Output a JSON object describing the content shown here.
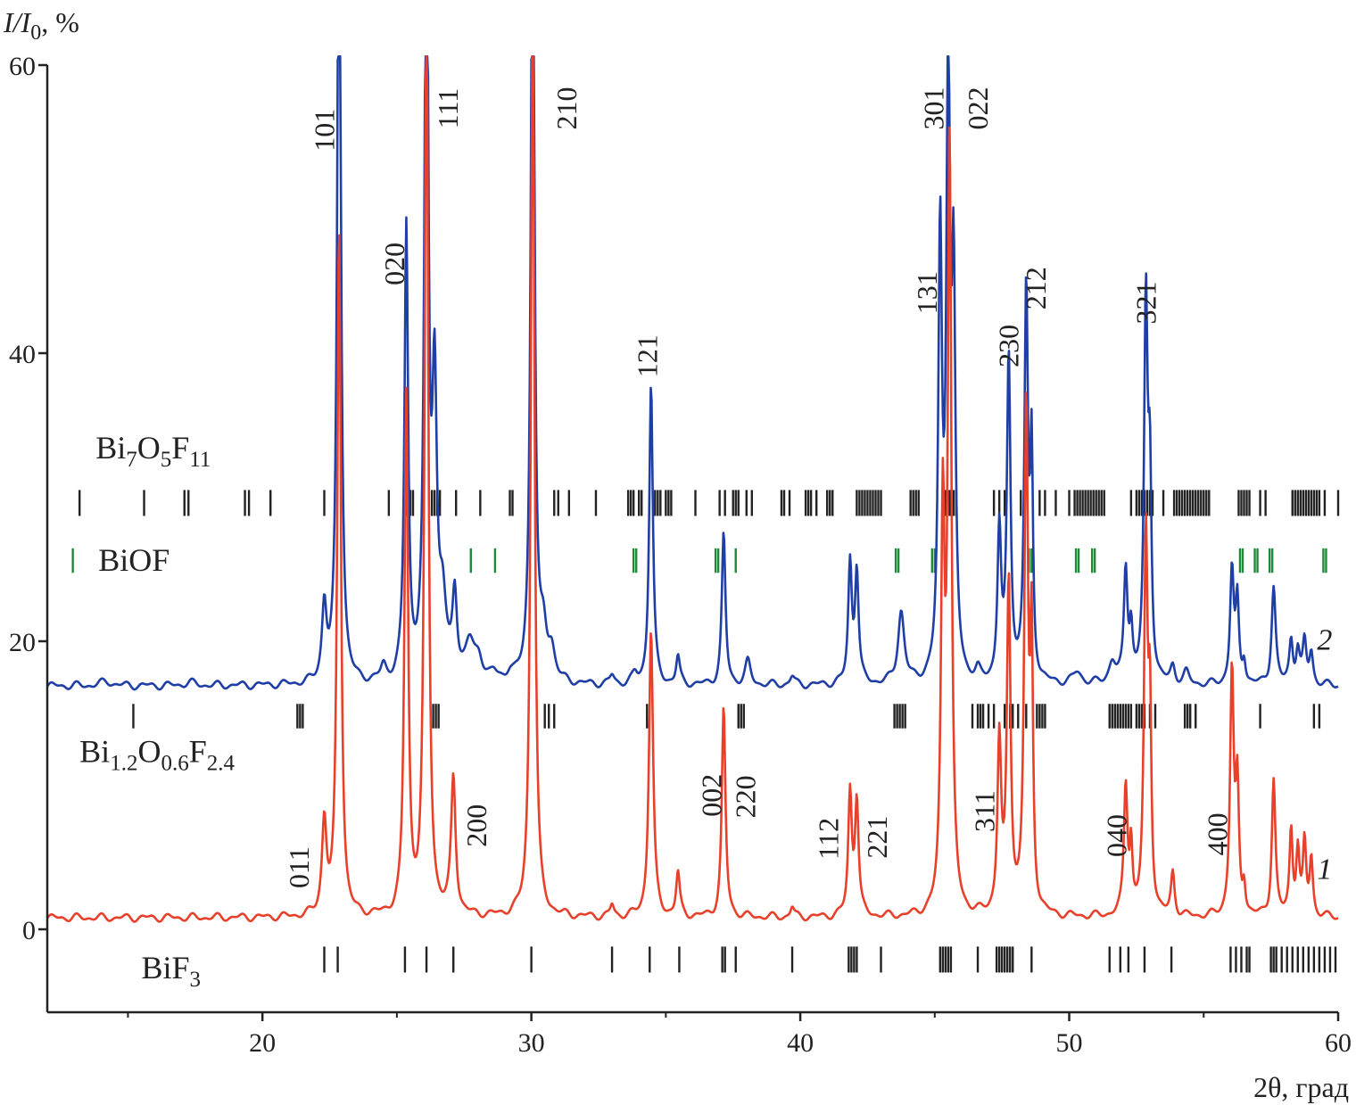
{
  "chart_data": {
    "type": "line",
    "title": "",
    "xlabel": "2θ, град",
    "ylabel": "I/I0, %",
    "ylabel_parts": [
      "I/I",
      "0",
      ", %"
    ],
    "xlim": [
      12,
      60
    ],
    "ylim": [
      -6,
      60
    ],
    "x_ticks": [
      20,
      30,
      40,
      50,
      60
    ],
    "y_ticks": [
      0,
      20,
      40,
      60
    ],
    "colors": {
      "curve1": "#e8402a",
      "curve2": "#1f3fa6",
      "bars": "#222222",
      "biof": "#1f8a3a",
      "axis": "#222222"
    },
    "series": [
      {
        "name": "1",
        "label": "1",
        "color": "#e8402a",
        "baseline": 0.8,
        "label_pos": [
          59.5,
          3.5
        ],
        "peaks": [
          [
            22.3,
            6.5,
            0.1
          ],
          [
            22.85,
            48,
            0.08
          ],
          [
            25.35,
            36,
            0.08
          ],
          [
            26.1,
            65,
            0.08
          ],
          [
            27.1,
            9.5,
            0.1
          ],
          [
            30.05,
            65,
            0.08
          ],
          [
            33.0,
            0.8,
            0.08
          ],
          [
            34.45,
            20,
            0.09
          ],
          [
            35.45,
            3.0,
            0.08
          ],
          [
            37.15,
            14.5,
            0.08
          ],
          [
            39.7,
            0.7,
            0.08
          ],
          [
            41.85,
            8.5,
            0.08
          ],
          [
            42.1,
            8.0,
            0.08
          ],
          [
            45.3,
            27,
            0.08
          ],
          [
            45.55,
            53,
            0.08
          ],
          [
            47.4,
            12,
            0.08
          ],
          [
            47.75,
            23,
            0.08
          ],
          [
            48.4,
            35,
            0.08
          ],
          [
            48.6,
            18,
            0.06
          ],
          [
            52.1,
            9.0,
            0.08
          ],
          [
            52.3,
            4.5,
            0.06
          ],
          [
            52.85,
            26,
            0.08
          ],
          [
            53.0,
            13,
            0.06
          ],
          [
            53.85,
            3.0,
            0.08
          ],
          [
            56.05,
            17,
            0.08
          ],
          [
            56.25,
            8.5,
            0.07
          ],
          [
            56.5,
            2.0,
            0.06
          ],
          [
            57.6,
            9.5,
            0.08
          ],
          [
            58.25,
            6.0,
            0.07
          ],
          [
            58.5,
            4.5,
            0.07
          ],
          [
            58.75,
            5.0,
            0.07
          ],
          [
            59.0,
            4.0,
            0.07
          ]
        ]
      },
      {
        "name": "2",
        "label": "2",
        "color": "#1f3fa6",
        "baseline": 16.9,
        "label_pos": [
          59.5,
          19.4
        ],
        "peaks": [
          [
            14.2,
            0.3,
            0.25
          ],
          [
            17.3,
            0.2,
            0.25
          ],
          [
            22.3,
            5.2,
            0.1
          ],
          [
            22.85,
            60,
            0.08
          ],
          [
            24.5,
            1.0,
            0.12
          ],
          [
            25.35,
            31.5,
            0.08
          ],
          [
            26.1,
            60,
            0.08
          ],
          [
            26.4,
            19.5,
            0.1
          ],
          [
            26.7,
            5.0,
            0.15
          ],
          [
            27.15,
            5.8,
            0.1
          ],
          [
            27.7,
            2.5,
            0.2
          ],
          [
            28.05,
            1.5,
            0.18
          ],
          [
            28.6,
            0.5,
            0.15
          ],
          [
            29.2,
            0.6,
            0.15
          ],
          [
            30.05,
            60,
            0.08
          ],
          [
            30.45,
            3.0,
            0.15
          ],
          [
            30.75,
            2.0,
            0.15
          ],
          [
            33.0,
            0.6,
            0.1
          ],
          [
            33.85,
            0.6,
            0.12
          ],
          [
            34.45,
            21,
            0.08
          ],
          [
            35.45,
            1.9,
            0.08
          ],
          [
            37.15,
            10.5,
            0.08
          ],
          [
            38.05,
            1.6,
            0.12
          ],
          [
            39.7,
            0.6,
            0.1
          ],
          [
            41.85,
            8.3,
            0.08
          ],
          [
            42.1,
            7.8,
            0.08
          ],
          [
            43.75,
            5.0,
            0.14
          ],
          [
            45.2,
            30.5,
            0.08
          ],
          [
            45.5,
            43,
            0.08
          ],
          [
            45.7,
            26,
            0.08
          ],
          [
            46.6,
            0.6,
            0.1
          ],
          [
            47.4,
            10.5,
            0.08
          ],
          [
            47.75,
            22.5,
            0.08
          ],
          [
            48.4,
            27,
            0.08
          ],
          [
            48.6,
            15,
            0.06
          ],
          [
            50.3,
            0.8,
            0.2
          ],
          [
            51.6,
            1.5,
            0.15
          ],
          [
            52.1,
            7.8,
            0.08
          ],
          [
            52.3,
            3.5,
            0.07
          ],
          [
            52.85,
            26,
            0.08
          ],
          [
            53.0,
            13,
            0.07
          ],
          [
            53.85,
            1.2,
            0.1
          ],
          [
            54.35,
            0.8,
            0.12
          ],
          [
            56.05,
            8.0,
            0.08
          ],
          [
            56.25,
            5.5,
            0.07
          ],
          [
            56.5,
            1.6,
            0.07
          ],
          [
            57.6,
            6.8,
            0.09
          ],
          [
            58.25,
            3.1,
            0.08
          ],
          [
            58.5,
            2.3,
            0.08
          ],
          [
            58.75,
            2.9,
            0.08
          ],
          [
            59.0,
            2.2,
            0.08
          ]
        ]
      }
    ],
    "reference_patterns": [
      {
        "phase": "Bi7O5F11",
        "parts": [
          [
            "Bi",
            false
          ],
          [
            "7",
            true
          ],
          [
            "O",
            false
          ],
          [
            "5",
            true
          ],
          [
            "F",
            false
          ],
          [
            "11",
            true
          ]
        ],
        "y_center": 29.6,
        "tick_half_height": 0.9,
        "color": "#222222",
        "label_pos": [
          13.8,
          32.7
        ],
        "positions": [
          13.2,
          15.6,
          17.1,
          17.25,
          19.35,
          19.5,
          20.3,
          22.3,
          24.7,
          25.35,
          25.5,
          25.6,
          26.3,
          26.4,
          26.5,
          26.6,
          27.2,
          28.1,
          29.2,
          29.3,
          30.85,
          31.0,
          31.4,
          32.4,
          33.6,
          33.7,
          33.8,
          34.0,
          34.1,
          34.6,
          34.7,
          34.8,
          35.0,
          35.1,
          35.2,
          36.1,
          37.0,
          37.2,
          37.5,
          37.6,
          37.7,
          38.0,
          38.2,
          39.3,
          39.4,
          39.6,
          40.2,
          40.3,
          40.4,
          40.6,
          41.0,
          41.1,
          41.2,
          42.1,
          42.2,
          42.3,
          42.4,
          42.5,
          42.6,
          42.7,
          42.8,
          42.9,
          43.0,
          44.1,
          44.2,
          44.3,
          44.4,
          45.4,
          45.55,
          45.7,
          45.8,
          47.2,
          47.4,
          47.6,
          48.2,
          48.9,
          49.1,
          49.5,
          50.0,
          50.2,
          50.3,
          50.4,
          50.5,
          50.6,
          50.7,
          50.8,
          50.9,
          51.0,
          51.1,
          51.2,
          51.3,
          52.3,
          52.5,
          52.6,
          52.7,
          52.8,
          52.9,
          53.0,
          53.1,
          53.5,
          53.9,
          54.0,
          54.1,
          54.2,
          54.3,
          54.4,
          54.5,
          54.6,
          54.7,
          54.8,
          54.9,
          55.0,
          55.1,
          55.2,
          56.3,
          56.4,
          56.5,
          56.6,
          56.7,
          57.1,
          57.3,
          58.3,
          58.4,
          58.5,
          58.6,
          58.7,
          58.8,
          58.9,
          59.0,
          59.1,
          59.2,
          59.3,
          59.5,
          60.0
        ]
      },
      {
        "phase": "BiOF",
        "parts": [
          [
            "BiOF",
            false
          ]
        ],
        "y_center": 25.6,
        "tick_half_height": 0.85,
        "color": "#1f8a3a",
        "label_pos": [
          13.9,
          24.9
        ],
        "legend_tick_x": 12.95,
        "positions": [
          27.75,
          28.65,
          33.8,
          33.9,
          36.85,
          36.95,
          37.6,
          43.55,
          43.65,
          44.9,
          45.0,
          48.5,
          48.6,
          50.25,
          50.35,
          50.85,
          50.95,
          56.35,
          56.45,
          56.9,
          57.0,
          57.45,
          57.55,
          59.45,
          59.55
        ]
      },
      {
        "phase": "Bi1.2O0.6F2.4",
        "parts": [
          [
            "Bi",
            false
          ],
          [
            "1.2",
            true
          ],
          [
            "O",
            false
          ],
          [
            "0.6",
            true
          ],
          [
            "F",
            false
          ],
          [
            "2.4",
            true
          ]
        ],
        "y_center": 14.8,
        "tick_half_height": 0.85,
        "color": "#222222",
        "label_pos": [
          13.2,
          11.6
        ],
        "positions": [
          15.2,
          21.3,
          21.4,
          21.5,
          26.35,
          26.45,
          26.55,
          30.5,
          30.65,
          30.85,
          34.3,
          37.7,
          37.8,
          37.9,
          43.5,
          43.6,
          43.7,
          43.8,
          43.9,
          46.4,
          46.6,
          46.7,
          46.8,
          47.0,
          47.2,
          47.6,
          47.8,
          47.9,
          48.1,
          48.4,
          48.8,
          48.9,
          49.0,
          49.1,
          51.5,
          51.6,
          51.7,
          51.8,
          51.9,
          52.0,
          52.1,
          52.2,
          52.3,
          52.5,
          52.6,
          52.7,
          52.8,
          53.0,
          53.2,
          54.3,
          54.4,
          54.5,
          54.7,
          57.1,
          59.1,
          59.3
        ]
      },
      {
        "phase": "BiF3",
        "parts": [
          [
            "BiF",
            false
          ],
          [
            "3",
            true
          ]
        ],
        "y_center": -2.1,
        "tick_half_height": 0.9,
        "color": "#222222",
        "label_pos": [
          15.5,
          -3.4
        ],
        "positions": [
          22.3,
          22.8,
          25.3,
          26.1,
          27.1,
          30.0,
          33.0,
          34.4,
          35.5,
          37.1,
          37.2,
          37.6,
          39.7,
          41.8,
          41.9,
          42.0,
          42.1,
          43.0,
          45.2,
          45.3,
          45.4,
          45.5,
          45.6,
          46.6,
          47.3,
          47.4,
          47.5,
          47.6,
          47.7,
          47.8,
          47.9,
          48.6,
          51.5,
          51.9,
          52.2,
          52.8,
          53.8,
          56.0,
          56.2,
          56.4,
          56.6,
          56.7,
          57.5,
          57.6,
          57.7,
          57.9,
          58.1,
          58.3,
          58.5,
          58.7,
          58.9,
          59.1,
          59.3,
          59.5,
          59.7,
          59.9
        ]
      }
    ],
    "annotations": [
      {
        "text": "101",
        "x": 22.3,
        "y": 55.5
      },
      {
        "text": "020",
        "x": 24.9,
        "y": 46.2
      },
      {
        "text": "111",
        "x": 26.9,
        "y": 57.0
      },
      {
        "text": "210",
        "x": 31.3,
        "y": 57.0
      },
      {
        "text": "121",
        "x": 34.3,
        "y": 39.8
      },
      {
        "text": "301",
        "x": 44.95,
        "y": 57.0
      },
      {
        "text": "022",
        "x": 46.6,
        "y": 57.0
      },
      {
        "text": "131",
        "x": 44.7,
        "y": 44.2
      },
      {
        "text": "230",
        "x": 47.75,
        "y": 40.5
      },
      {
        "text": "212",
        "x": 48.75,
        "y": 44.5
      },
      {
        "text": "321",
        "x": 52.85,
        "y": 43.5
      },
      {
        "text": "011",
        "x": 21.35,
        "y": 4.3
      },
      {
        "text": "200",
        "x": 27.95,
        "y": 7.2
      },
      {
        "text": "002",
        "x": 36.7,
        "y": 9.3
      },
      {
        "text": "220",
        "x": 37.95,
        "y": 9.2
      },
      {
        "text": "112",
        "x": 41.05,
        "y": 6.3
      },
      {
        "text": "221",
        "x": 42.85,
        "y": 6.4
      },
      {
        "text": "311",
        "x": 46.85,
        "y": 8.2
      },
      {
        "text": "040",
        "x": 51.75,
        "y": 6.5
      },
      {
        "text": "400",
        "x": 55.5,
        "y": 6.6
      }
    ]
  }
}
